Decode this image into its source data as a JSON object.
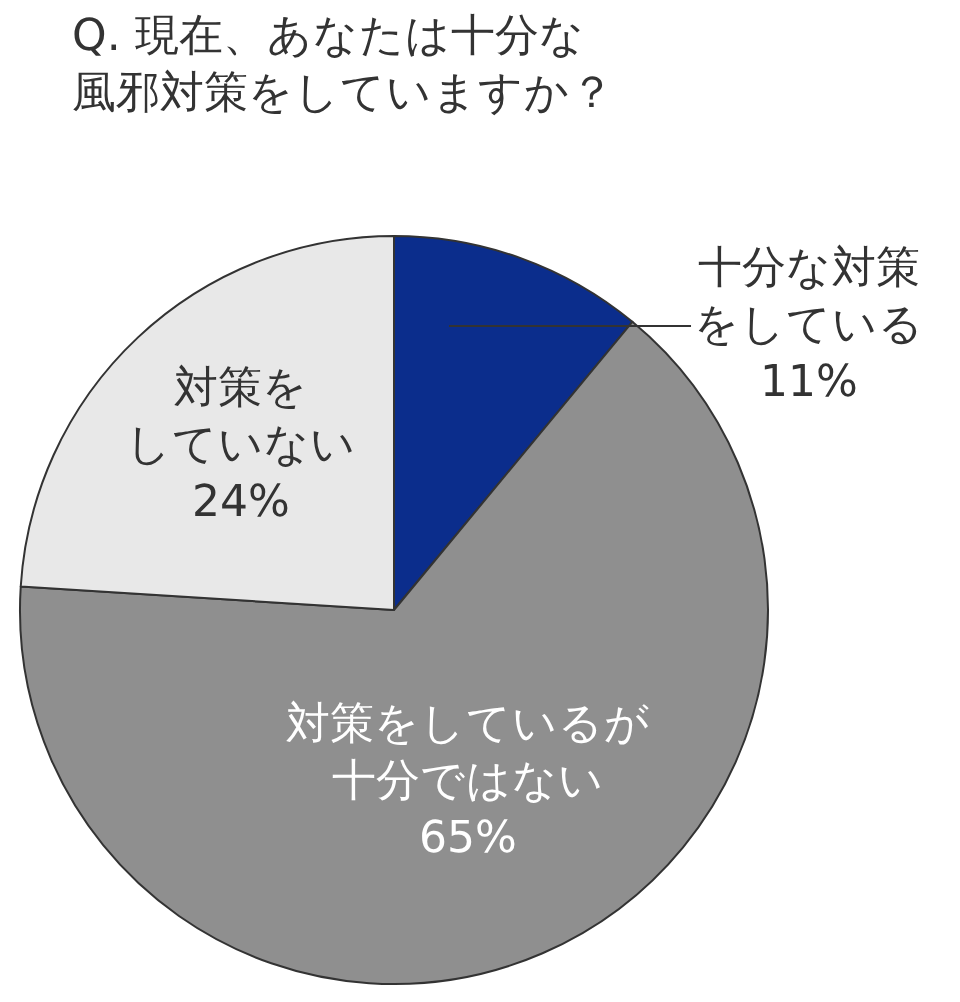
{
  "chart_data": {
    "type": "pie",
    "title": "Q. 現在、あなたは十分な風邪対策をしていますか？",
    "categories": [
      "十分な対策をしている",
      "対策をしているが十分ではない",
      "対策をしていない"
    ],
    "values": [
      11,
      65,
      24
    ],
    "colors": [
      "#0b2d8c",
      "#8f8f8f",
      "#e8e8e8"
    ],
    "value_labels": [
      "11%",
      "65%",
      "24%"
    ],
    "legend": false
  }
}
